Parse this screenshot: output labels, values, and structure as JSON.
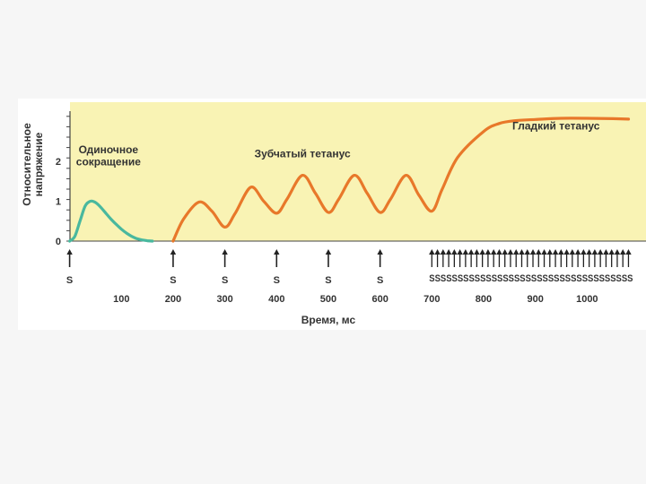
{
  "chart_data": {
    "type": "line",
    "ylabel": "Относительное напряжение",
    "xlabel": "Время, мс",
    "y_ticks": [
      "0",
      "1",
      "2"
    ],
    "ylim": [
      0,
      2.9
    ],
    "x_ticks": [
      "100",
      "200",
      "300",
      "400",
      "500",
      "600",
      "700",
      "800",
      "900",
      "1000"
    ],
    "x_tick_values": [
      100,
      200,
      300,
      400,
      500,
      600,
      700,
      800,
      900,
      1000
    ],
    "xlim": [
      0,
      1100
    ],
    "plot_background": "#f9f3b4",
    "series": [
      {
        "name": "",
        "color": "#49b89e",
        "x": [
          0,
          10,
          20,
          30,
          40,
          50,
          60,
          70,
          80,
          90,
          100,
          110,
          120,
          130,
          140,
          150,
          160
        ],
        "y": [
          0,
          0.12,
          0.5,
          0.88,
          1.0,
          0.97,
          0.85,
          0.7,
          0.55,
          0.42,
          0.3,
          0.2,
          0.12,
          0.06,
          0.03,
          0.01,
          0
        ]
      },
      {
        "name": "",
        "color": "#e8782a",
        "x": [
          200,
          220,
          250,
          275,
          300,
          320,
          350,
          375,
          400,
          420,
          450,
          475,
          500,
          520,
          550,
          575,
          600,
          620,
          650,
          675,
          700,
          720,
          750,
          800,
          830,
          860,
          900,
          950,
          1000,
          1050,
          1080
        ],
        "y": [
          0,
          0.55,
          0.98,
          0.75,
          0.35,
          0.7,
          1.35,
          1.0,
          0.7,
          1.05,
          1.65,
          1.2,
          0.72,
          1.05,
          1.65,
          1.2,
          0.72,
          1.05,
          1.65,
          1.15,
          0.75,
          1.3,
          2.1,
          2.75,
          2.95,
          3.02,
          3.05,
          3.08,
          3.08,
          3.07,
          3.06
        ]
      }
    ],
    "annotations": [
      {
        "text": "Одиночное",
        "x": 75,
        "y": 2.2
      },
      {
        "text": "сокращение",
        "x": 75,
        "y": 1.9
      },
      {
        "text": "Зубчатый тетанус",
        "x": 450,
        "y": 2.1
      },
      {
        "text": "Гладкий тетанус",
        "x": 940,
        "y": 2.8
      }
    ],
    "stimuli": {
      "label": "S",
      "single_x": [
        0,
        200,
        300,
        400,
        500,
        600
      ],
      "train_start": 700,
      "train_end": 1080,
      "train_count": 36,
      "train_text": "SSSSSSSSSSSSSSSSSSSSSSSSSSSSSSSSSSSS"
    },
    "colors": {
      "single_twitch": "#49b89e",
      "tetanus": "#e8782a",
      "plot_background": "#f9f3b4"
    }
  }
}
